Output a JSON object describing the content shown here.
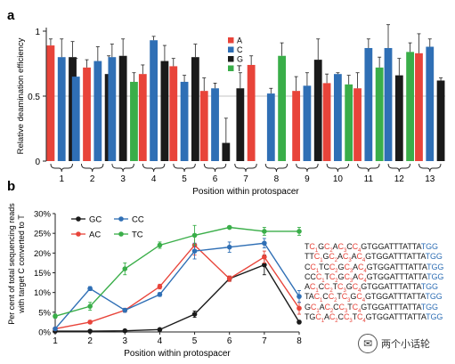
{
  "panel_a_label": "a",
  "panel_b_label": "b",
  "chart_data": [
    {
      "type": "bar",
      "panel": "a",
      "xlabel": "Position within protospacer",
      "ylabel": "Relative deamination efficiency",
      "ylim": [
        0,
        1
      ],
      "yticks": [
        "0",
        "0.5",
        "1"
      ],
      "reference_line": 0.5,
      "legend": [
        "A",
        "C",
        "G",
        "T"
      ],
      "legend_position": "top-center",
      "colors": {
        "A": "#e8443a",
        "C": "#2f6fb5",
        "G": "#1a1a1a",
        "T": "#3aae49"
      },
      "categories": [
        "1",
        "2",
        "3",
        "4",
        "5",
        "6",
        "7",
        "8",
        "9",
        "10",
        "11",
        "12",
        "13"
      ],
      "bars": [
        [
          {
            "base": "A",
            "value": 0.89,
            "err": 0.05
          },
          {
            "base": "C",
            "value": 0.8,
            "err": 0.14
          },
          {
            "base": "G",
            "value": 0.8,
            "err": 0.12
          }
        ],
        [
          {
            "base": "C",
            "value": 0.65,
            "err": 0.14
          },
          {
            "base": "A",
            "value": 0.72,
            "err": 0.06
          },
          {
            "base": "C",
            "value": 0.77,
            "err": 0.11
          },
          {
            "base": "G",
            "value": 0.67,
            "err": 0.14
          }
        ],
        [
          {
            "base": "C",
            "value": 0.8,
            "err": 0.1
          },
          {
            "base": "G",
            "value": 0.81,
            "err": 0.13
          },
          {
            "base": "T",
            "value": 0.61,
            "err": 0.07
          }
        ],
        [
          {
            "base": "A",
            "value": 0.67,
            "err": 0.07
          },
          {
            "base": "C",
            "value": 0.93,
            "err": 0.03
          },
          {
            "base": "G",
            "value": 0.77,
            "err": 0.12
          }
        ],
        [
          {
            "base": "A",
            "value": 0.73,
            "err": 0.06
          },
          {
            "base": "C",
            "value": 0.61,
            "err": 0.05
          },
          {
            "base": "G",
            "value": 0.8,
            "err": 0.1
          }
        ],
        [
          {
            "base": "A",
            "value": 0.54,
            "err": 0.1
          },
          {
            "base": "C",
            "value": 0.56,
            "err": 0.04
          },
          {
            "base": "G",
            "value": 0.14,
            "err": 0.19
          }
        ],
        [
          {
            "base": "G",
            "value": 0.56,
            "err": 0.12
          },
          {
            "base": "A",
            "value": 0.74,
            "err": 0.07
          }
        ],
        [
          {
            "base": "C",
            "value": 0.52,
            "err": 0.04
          },
          {
            "base": "T",
            "value": 0.81,
            "err": 0.1
          }
        ],
        [
          {
            "base": "A",
            "value": 0.54,
            "err": 0.11
          },
          {
            "base": "C",
            "value": 0.58,
            "err": 0.1
          },
          {
            "base": "G",
            "value": 0.78,
            "err": 0.16
          }
        ],
        [
          {
            "base": "A",
            "value": 0.6,
            "err": 0.07
          },
          {
            "base": "C",
            "value": 0.67,
            "err": 0.01
          },
          {
            "base": "T",
            "value": 0.59,
            "err": 0.07
          }
        ],
        [
          {
            "base": "A",
            "value": 0.56,
            "err": 0.12
          },
          {
            "base": "C",
            "value": 0.87,
            "err": 0.07
          },
          {
            "base": "T",
            "value": 0.72,
            "err": 0.08
          }
        ],
        [
          {
            "base": "C",
            "value": 0.87,
            "err": 0.18
          },
          {
            "base": "G",
            "value": 0.66,
            "err": 0.13
          },
          {
            "base": "T",
            "value": 0.84,
            "err": 0.07
          }
        ],
        [
          {
            "base": "A",
            "value": 0.83,
            "err": 0.15
          },
          {
            "base": "C",
            "value": 0.88,
            "err": 0.06
          },
          {
            "base": "G",
            "value": 0.62,
            "err": 0.02
          }
        ]
      ]
    },
    {
      "type": "line",
      "panel": "b",
      "xlabel": "Position within protospacer",
      "ylabel": "Per cent of total sequencing reads with target C converted to T",
      "x": [
        1,
        2,
        3,
        4,
        5,
        6,
        7,
        8
      ],
      "xlim": [
        1,
        8
      ],
      "ylim": [
        0,
        30
      ],
      "yticks": [
        "0%",
        "5%",
        "10%",
        "15%",
        "20%",
        "25%",
        "30%"
      ],
      "legend_position": "top-left",
      "series": [
        {
          "name": "GC",
          "color": "#1a1a1a",
          "values": [
            0.2,
            0.2,
            0.3,
            0.6,
            4.5,
            13.5,
            17,
            2.5
          ],
          "err": [
            0.2,
            0.2,
            0.2,
            0.2,
            0.8,
            0.6,
            2.5,
            0.4
          ]
        },
        {
          "name": "AC",
          "color": "#e8443a",
          "values": [
            0.8,
            2.5,
            5.5,
            11.5,
            22,
            13.5,
            19,
            6
          ],
          "err": [
            0.3,
            0.4,
            0.5,
            0.6,
            2.5,
            0.7,
            1.5,
            1.5
          ]
        },
        {
          "name": "CC",
          "color": "#2f6fb5",
          "values": [
            0.8,
            11,
            5.5,
            9.5,
            20.5,
            21.5,
            22.5,
            9
          ],
          "err": [
            0.3,
            0.5,
            0.5,
            0.5,
            2,
            1.3,
            1.2,
            1.5
          ]
        },
        {
          "name": "TC",
          "color": "#3aae49",
          "values": [
            4,
            6.5,
            16,
            22,
            24.5,
            26.5,
            25.5,
            25.5
          ],
          "err": [
            0.5,
            1,
            1.5,
            0.8,
            2.5,
            0.3,
            1,
            1
          ]
        }
      ]
    }
  ],
  "sequences": [
    [
      [
        "T",
        "b"
      ],
      [
        "C",
        "r"
      ],
      [
        "1",
        "rs"
      ],
      [
        "G",
        "b"
      ],
      [
        "C",
        "r"
      ],
      [
        "2",
        "rs"
      ],
      [
        "A",
        "b"
      ],
      [
        "C",
        "r"
      ],
      [
        "3",
        "rs"
      ],
      [
        "C",
        "b"
      ],
      [
        "C",
        "r"
      ],
      [
        "4",
        "rs"
      ],
      [
        "GTGGATTTATTA",
        "b"
      ],
      [
        "TGG",
        "bl"
      ]
    ],
    [
      [
        "TT",
        "b"
      ],
      [
        "C",
        "r"
      ],
      [
        "1",
        "rs"
      ],
      [
        "G",
        "b"
      ],
      [
        "C",
        "r"
      ],
      [
        "2",
        "rs"
      ],
      [
        "A",
        "b"
      ],
      [
        "C",
        "r"
      ],
      [
        "3",
        "rs"
      ],
      [
        "A",
        "b"
      ],
      [
        "C",
        "r"
      ],
      [
        "4",
        "rs"
      ],
      [
        "GTGGATTTATTA",
        "b"
      ],
      [
        "TGG",
        "bl"
      ]
    ],
    [
      [
        "C",
        "b"
      ],
      [
        "C",
        "r"
      ],
      [
        "1",
        "rs"
      ],
      [
        "TC",
        "b"
      ],
      [
        "C",
        "r"
      ],
      [
        "2",
        "rs"
      ],
      [
        "G",
        "b"
      ],
      [
        "C",
        "r"
      ],
      [
        "3",
        "rs"
      ],
      [
        "A",
        "b"
      ],
      [
        "C",
        "r"
      ],
      [
        "4",
        "rs"
      ],
      [
        "GTGGATTTATTA",
        "b"
      ],
      [
        "TGG",
        "bl"
      ]
    ],
    [
      [
        "CC",
        "b"
      ],
      [
        "C",
        "r"
      ],
      [
        "1",
        "rs"
      ],
      [
        "T",
        "b"
      ],
      [
        "C",
        "r"
      ],
      [
        "2",
        "rs"
      ],
      [
        "G",
        "b"
      ],
      [
        "C",
        "r"
      ],
      [
        "3",
        "rs"
      ],
      [
        "A",
        "b"
      ],
      [
        "C",
        "r"
      ],
      [
        "4",
        "rs"
      ],
      [
        "GTGGATTTATTA",
        "b"
      ],
      [
        "TGG",
        "bl"
      ]
    ],
    [
      [
        "A",
        "b"
      ],
      [
        "C",
        "r"
      ],
      [
        "1",
        "rs"
      ],
      [
        "C",
        "b"
      ],
      [
        "C",
        "r"
      ],
      [
        "2",
        "rs"
      ],
      [
        "T",
        "b"
      ],
      [
        "C",
        "r"
      ],
      [
        "3",
        "rs"
      ],
      [
        "G",
        "b"
      ],
      [
        "C",
        "r"
      ],
      [
        "4",
        "rs"
      ],
      [
        "GTGGATTTATTA",
        "b"
      ],
      [
        "TGG",
        "bl"
      ]
    ],
    [
      [
        "TA",
        "b"
      ],
      [
        "C",
        "r"
      ],
      [
        "1",
        "rs"
      ],
      [
        "C",
        "b"
      ],
      [
        "C",
        "r"
      ],
      [
        "2",
        "rs"
      ],
      [
        "T",
        "b"
      ],
      [
        "C",
        "r"
      ],
      [
        "3",
        "rs"
      ],
      [
        "G",
        "b"
      ],
      [
        "C",
        "r"
      ],
      [
        "4",
        "rs"
      ],
      [
        "GTGGATTTATTA",
        "b"
      ],
      [
        "TGG",
        "bl"
      ]
    ],
    [
      [
        "G",
        "b"
      ],
      [
        "C",
        "r"
      ],
      [
        "1",
        "rs"
      ],
      [
        "A",
        "b"
      ],
      [
        "C",
        "r"
      ],
      [
        "2",
        "rs"
      ],
      [
        "C",
        "b"
      ],
      [
        "C",
        "r"
      ],
      [
        "3",
        "rs"
      ],
      [
        "T",
        "b"
      ],
      [
        "C",
        "r"
      ],
      [
        "4",
        "rs"
      ],
      [
        "GTGGATTTATTA",
        "b"
      ],
      [
        "TGG",
        "bl"
      ]
    ],
    [
      [
        "TG",
        "b"
      ],
      [
        "C",
        "r"
      ],
      [
        "1",
        "rs"
      ],
      [
        "A",
        "b"
      ],
      [
        "C",
        "r"
      ],
      [
        "2",
        "rs"
      ],
      [
        "C",
        "b"
      ],
      [
        "C",
        "r"
      ],
      [
        "3",
        "rs"
      ],
      [
        "T",
        "b"
      ],
      [
        "C",
        "r"
      ],
      [
        "4",
        "rs"
      ],
      [
        "GTGGATTTATTA",
        "b"
      ],
      [
        "TGG",
        "bl"
      ]
    ]
  ],
  "watermark": {
    "text": "两个小话轮",
    "icon": "wechat-bubble-icon"
  }
}
